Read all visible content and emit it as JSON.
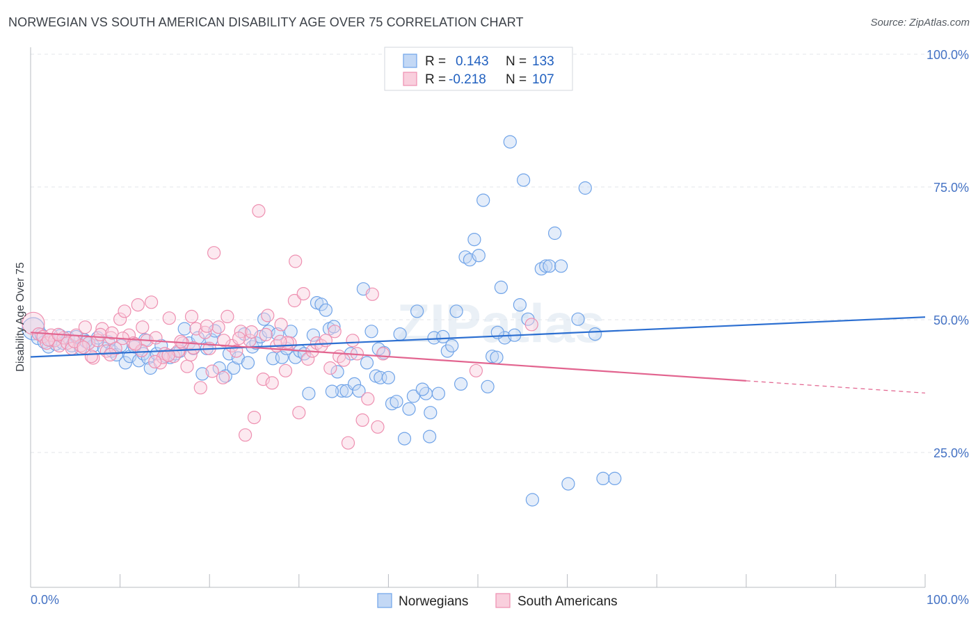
{
  "title": "NORWEGIAN VS SOUTH AMERICAN DISABILITY AGE OVER 75 CORRELATION CHART",
  "source": "Source: ZipAtlas.com",
  "watermark": "ZIPatlas",
  "stats": [
    {
      "r_label": "R =",
      "r_value": "0.143",
      "n_label": "N =",
      "n_value": "133",
      "color": "#6fa3e8",
      "fill": "#c3d8f5"
    },
    {
      "r_label": "R =",
      "r_value": "-0.218",
      "n_label": "N =",
      "n_value": "107",
      "color": "#ee8fb0",
      "fill": "#f9cfdd"
    }
  ],
  "chart_data": {
    "type": "scatter",
    "ylabel": "Disability Age Over 75",
    "xlim": [
      0,
      100
    ],
    "ylim": [
      0,
      105
    ],
    "x_tick_labels": [
      {
        "value": 0,
        "label": "0.0%"
      },
      {
        "value": 100,
        "label": "100.0%"
      }
    ],
    "y_tick_labels": [
      {
        "value": 25,
        "label": "25.0%"
      },
      {
        "value": 50,
        "label": "50.0%"
      },
      {
        "value": 75,
        "label": "75.0%"
      },
      {
        "value": 100,
        "label": "100.0%"
      }
    ],
    "grid": true,
    "legend_position": "bottom",
    "series": [
      {
        "name": "Norwegians",
        "color": "#6fa3e8",
        "fill": "#c3d8f5",
        "trend": {
          "x": [
            0,
            100
          ],
          "y": [
            43.0,
            50.5
          ],
          "line_color": "#2c6fd1"
        },
        "points": [
          [
            0.3,
            48.3
          ],
          [
            0.8,
            46.5
          ],
          [
            1.2,
            47.2
          ],
          [
            1.5,
            45.8
          ],
          [
            2.0,
            44.9
          ],
          [
            2.3,
            46.1
          ],
          [
            2.8,
            45.4
          ],
          [
            3.3,
            47.0
          ],
          [
            3.6,
            45.6
          ],
          [
            4.2,
            46.6
          ],
          [
            4.6,
            45.1
          ],
          [
            5.1,
            46.8
          ],
          [
            5.6,
            44.6
          ],
          [
            6.0,
            46.2
          ],
          [
            6.5,
            45.6
          ],
          [
            7.0,
            45.1
          ],
          [
            7.5,
            46.6
          ],
          [
            8.2,
            44.6
          ],
          [
            8.7,
            45.8
          ],
          [
            9.1,
            44.1
          ],
          [
            9.6,
            43.4
          ],
          [
            10.1,
            45.1
          ],
          [
            10.6,
            41.9
          ],
          [
            11.1,
            43.1
          ],
          [
            11.6,
            44.9
          ],
          [
            12.1,
            42.3
          ],
          [
            12.6,
            43.6
          ],
          [
            13.1,
            42.8
          ],
          [
            13.4,
            40.9
          ],
          [
            14.1,
            43.6
          ],
          [
            14.6,
            45.1
          ],
          [
            15.1,
            43.1
          ],
          [
            15.6,
            42.9
          ],
          [
            16.2,
            43.6
          ],
          [
            16.7,
            44.1
          ],
          [
            17.2,
            48.3
          ],
          [
            17.7,
            45.6
          ],
          [
            18.2,
            44.6
          ],
          [
            18.7,
            46.6
          ],
          [
            19.2,
            39.8
          ],
          [
            19.7,
            44.6
          ],
          [
            20.2,
            46.2
          ],
          [
            21.1,
            40.9
          ],
          [
            21.8,
            39.4
          ],
          [
            22.2,
            43.6
          ],
          [
            22.7,
            40.9
          ],
          [
            23.2,
            42.8
          ],
          [
            23.9,
            47.3
          ],
          [
            24.3,
            41.9
          ],
          [
            24.8,
            44.9
          ],
          [
            25.2,
            45.6
          ],
          [
            25.7,
            46.8
          ],
          [
            26.1,
            50.1
          ],
          [
            26.6,
            47.8
          ],
          [
            27.1,
            42.7
          ],
          [
            27.6,
            47.3
          ],
          [
            28.1,
            42.9
          ],
          [
            28.6,
            44.6
          ],
          [
            29.1,
            47.8
          ],
          [
            29.6,
            42.9
          ],
          [
            30.1,
            44.1
          ],
          [
            30.6,
            43.6
          ],
          [
            31.1,
            36.1
          ],
          [
            31.6,
            47.1
          ],
          [
            32.0,
            53.2
          ],
          [
            32.5,
            52.9
          ],
          [
            33.0,
            51.8
          ],
          [
            33.4,
            48.3
          ],
          [
            33.9,
            48.7
          ],
          [
            34.3,
            40.2
          ],
          [
            34.8,
            36.6
          ],
          [
            35.3,
            36.6
          ],
          [
            35.8,
            43.6
          ],
          [
            36.2,
            37.9
          ],
          [
            36.7,
            36.6
          ],
          [
            37.2,
            55.8
          ],
          [
            37.6,
            41.9
          ],
          [
            38.1,
            47.8
          ],
          [
            38.6,
            39.4
          ],
          [
            39.1,
            39.1
          ],
          [
            39.5,
            43.8
          ],
          [
            40.0,
            39.1
          ],
          [
            40.4,
            34.2
          ],
          [
            40.9,
            34.6
          ],
          [
            41.3,
            47.3
          ],
          [
            41.8,
            27.6
          ],
          [
            42.3,
            33.2
          ],
          [
            42.8,
            35.6
          ],
          [
            43.2,
            51.6
          ],
          [
            44.2,
            36.1
          ],
          [
            44.7,
            32.5
          ],
          [
            45.1,
            46.6
          ],
          [
            45.6,
            36.1
          ],
          [
            46.1,
            46.8
          ],
          [
            46.6,
            44.1
          ],
          [
            47.1,
            45.1
          ],
          [
            47.6,
            51.6
          ],
          [
            48.1,
            37.9
          ],
          [
            48.6,
            61.8
          ],
          [
            49.1,
            61.3
          ],
          [
            49.6,
            65.1
          ],
          [
            50.1,
            62.1
          ],
          [
            50.6,
            72.5
          ],
          [
            51.1,
            37.4
          ],
          [
            51.6,
            43.1
          ],
          [
            52.1,
            42.9
          ],
          [
            52.6,
            56.1
          ],
          [
            53.0,
            46.6
          ],
          [
            53.6,
            83.5
          ],
          [
            54.1,
            47.1
          ],
          [
            54.7,
            52.8
          ],
          [
            55.1,
            76.3
          ],
          [
            55.6,
            50.1
          ],
          [
            56.1,
            16.1
          ],
          [
            57.1,
            59.6
          ],
          [
            57.6,
            60.1
          ],
          [
            58.0,
            60.1
          ],
          [
            58.6,
            66.3
          ],
          [
            59.3,
            60.1
          ],
          [
            60.1,
            19.1
          ],
          [
            61.2,
            50.1
          ],
          [
            62.0,
            74.8
          ],
          [
            63.1,
            47.3
          ],
          [
            64.0,
            20.1
          ],
          [
            65.3,
            20.1
          ],
          [
            52.2,
            47.6
          ],
          [
            44.6,
            28.0
          ],
          [
            43.8,
            36.9
          ],
          [
            6.2,
            45.9
          ],
          [
            12.8,
            46.2
          ],
          [
            33.7,
            36.5
          ],
          [
            20.6,
            47.9
          ],
          [
            38.9,
            44.5
          ]
        ]
      },
      {
        "name": "South Americans",
        "color": "#ee8fb0",
        "fill": "#f9cfdd",
        "trend": {
          "x": [
            0,
            80
          ],
          "y": [
            47.6,
            38.5
          ],
          "dashed_to_x": 100,
          "dashed_to_y": 36.2,
          "line_color": "#e2648f"
        },
        "points": [
          [
            0.3,
            49.3
          ],
          [
            0.9,
            47.3
          ],
          [
            1.4,
            46.8
          ],
          [
            1.8,
            45.6
          ],
          [
            2.3,
            47.1
          ],
          [
            2.7,
            46.1
          ],
          [
            3.2,
            45.1
          ],
          [
            3.7,
            46.6
          ],
          [
            4.1,
            45.6
          ],
          [
            4.6,
            44.6
          ],
          [
            5.1,
            47.1
          ],
          [
            5.6,
            45.1
          ],
          [
            6.1,
            48.6
          ],
          [
            6.5,
            45.6
          ],
          [
            7.0,
            42.8
          ],
          [
            7.5,
            46.1
          ],
          [
            8.0,
            48.3
          ],
          [
            8.5,
            44.1
          ],
          [
            9.0,
            46.6
          ],
          [
            9.5,
            44.6
          ],
          [
            10.0,
            50.1
          ],
          [
            10.5,
            51.6
          ],
          [
            11.0,
            47.1
          ],
          [
            11.5,
            45.6
          ],
          [
            12.0,
            52.8
          ],
          [
            12.5,
            48.6
          ],
          [
            13.0,
            46.1
          ],
          [
            13.5,
            53.3
          ],
          [
            14.0,
            46.6
          ],
          [
            14.5,
            41.9
          ],
          [
            15.0,
            43.6
          ],
          [
            15.5,
            50.3
          ],
          [
            16.0,
            43.1
          ],
          [
            16.5,
            44.1
          ],
          [
            17.0,
            45.6
          ],
          [
            17.5,
            41.2
          ],
          [
            18.0,
            50.6
          ],
          [
            18.5,
            48.3
          ],
          [
            19.0,
            37.2
          ],
          [
            19.5,
            47.6
          ],
          [
            20.0,
            44.6
          ],
          [
            20.5,
            62.6
          ],
          [
            21.0,
            48.6
          ],
          [
            21.5,
            39.1
          ],
          [
            22.0,
            50.6
          ],
          [
            22.5,
            45.1
          ],
          [
            23.0,
            44.1
          ],
          [
            23.5,
            47.8
          ],
          [
            24.0,
            28.3
          ],
          [
            24.5,
            46.1
          ],
          [
            25.0,
            31.6
          ],
          [
            25.5,
            70.5
          ],
          [
            26.0,
            38.8
          ],
          [
            26.5,
            50.8
          ],
          [
            27.0,
            38.1
          ],
          [
            27.5,
            45.1
          ],
          [
            28.0,
            49.1
          ],
          [
            28.5,
            40.4
          ],
          [
            29.0,
            45.6
          ],
          [
            29.5,
            53.6
          ],
          [
            30.0,
            32.5
          ],
          [
            30.5,
            54.9
          ],
          [
            31.0,
            42.6
          ],
          [
            31.5,
            44.1
          ],
          [
            32.0,
            45.6
          ],
          [
            32.5,
            45.1
          ],
          [
            33.0,
            46.1
          ],
          [
            33.5,
            40.9
          ],
          [
            34.0,
            47.8
          ],
          [
            34.5,
            43.1
          ],
          [
            35.0,
            42.4
          ],
          [
            35.5,
            26.8
          ],
          [
            36.0,
            46.1
          ],
          [
            36.5,
            43.6
          ],
          [
            37.1,
            31.1
          ],
          [
            37.7,
            35.1
          ],
          [
            38.2,
            54.8
          ],
          [
            38.8,
            29.8
          ],
          [
            39.4,
            43.6
          ],
          [
            49.8,
            40.4
          ],
          [
            56.0,
            49.1
          ],
          [
            29.6,
            61.0
          ],
          [
            2.0,
            46.2
          ],
          [
            4.9,
            45.9
          ],
          [
            7.8,
            47.2
          ],
          [
            10.3,
            46.5
          ],
          [
            12.4,
            44.2
          ],
          [
            14.8,
            42.9
          ],
          [
            17.9,
            43.4
          ],
          [
            20.3,
            40.3
          ],
          [
            23.3,
            46.5
          ],
          [
            26.3,
            47.2
          ],
          [
            28.7,
            45.7
          ],
          [
            6.8,
            43.1
          ],
          [
            9.1,
            47.5
          ],
          [
            11.7,
            45.4
          ],
          [
            15.4,
            43.3
          ],
          [
            18.2,
            44.7
          ],
          [
            21.6,
            46.1
          ],
          [
            24.7,
            47.7
          ],
          [
            27.9,
            45.9
          ],
          [
            3.1,
            47.2
          ],
          [
            5.9,
            44.8
          ],
          [
            8.9,
            43.4
          ],
          [
            13.9,
            42.1
          ],
          [
            16.8,
            45.9
          ],
          [
            19.7,
            48.8
          ]
        ]
      }
    ]
  }
}
